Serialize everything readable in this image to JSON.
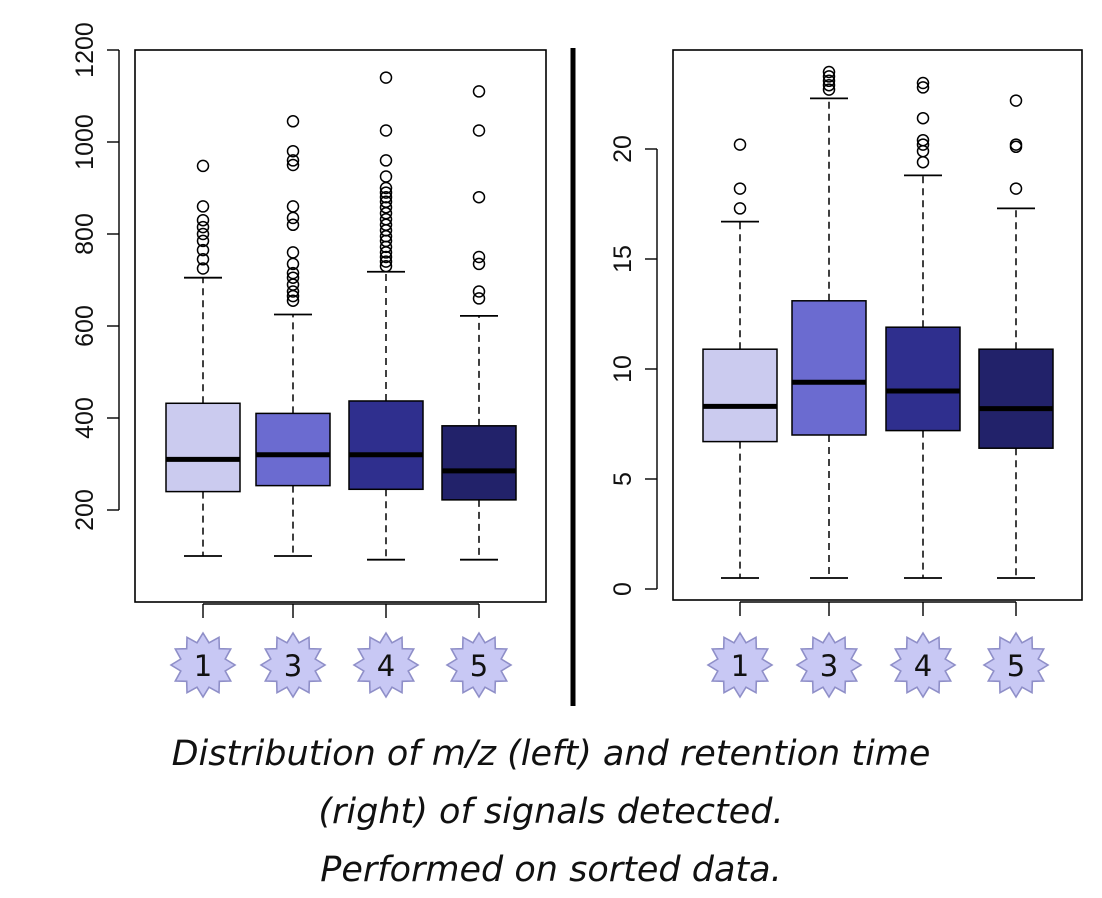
{
  "colors": {
    "group_fills": [
      "#cbcbef",
      "#6b6bd0",
      "#2f2f8e",
      "#22226a"
    ],
    "badge_fill": "#c8c8f4",
    "badge_stroke": "#8f8fc8",
    "divider": "#000000"
  },
  "chart_data": [
    {
      "type": "box",
      "categories": [
        "1",
        "3",
        "4",
        "5"
      ],
      "category_badges": "star",
      "ylim": [
        0,
        1200
      ],
      "yticks": [
        200,
        400,
        600,
        800,
        1000,
        1200
      ],
      "grid": false,
      "boxes": [
        {
          "label": "1",
          "whisker_low": 100,
          "q1": 240,
          "median": 310,
          "q3": 432,
          "whisker_high": 705,
          "outliers": [
            725,
            745,
            765,
            785,
            800,
            815,
            830,
            860,
            948
          ]
        },
        {
          "label": "3",
          "whisker_low": 100,
          "q1": 253,
          "median": 320,
          "q3": 410,
          "whisker_high": 625,
          "outliers": [
            655,
            665,
            675,
            690,
            705,
            715,
            735,
            760,
            820,
            835,
            860,
            950,
            960,
            980,
            1045
          ]
        },
        {
          "label": "4",
          "whisker_low": 92,
          "q1": 245,
          "median": 320,
          "q3": 437,
          "whisker_high": 718,
          "outliers": [
            730,
            740,
            750,
            760,
            772,
            785,
            795,
            808,
            820,
            832,
            845,
            858,
            870,
            880,
            890,
            900,
            925,
            960,
            1025,
            1140
          ]
        },
        {
          "label": "5",
          "whisker_low": 92,
          "q1": 222,
          "median": 285,
          "q3": 383,
          "whisker_high": 622,
          "outliers": [
            660,
            675,
            735,
            750,
            880,
            1025,
            1110
          ]
        }
      ]
    },
    {
      "type": "box",
      "categories": [
        "1",
        "3",
        "4",
        "5"
      ],
      "category_badges": "star",
      "ylim": [
        -0.5,
        24.5
      ],
      "yticks": [
        0,
        5,
        10,
        15,
        20
      ],
      "grid": false,
      "boxes": [
        {
          "label": "1",
          "whisker_low": 0.5,
          "q1": 6.7,
          "median": 8.3,
          "q3": 10.9,
          "whisker_high": 16.7,
          "outliers": [
            17.3,
            18.2,
            20.2
          ]
        },
        {
          "label": "3",
          "whisker_low": 0.5,
          "q1": 7.0,
          "median": 9.4,
          "q3": 13.1,
          "whisker_high": 22.3,
          "outliers": [
            22.7,
            22.9,
            23.1,
            23.3,
            23.5
          ]
        },
        {
          "label": "4",
          "whisker_low": 0.5,
          "q1": 7.2,
          "median": 9.0,
          "q3": 11.9,
          "whisker_high": 18.8,
          "outliers": [
            19.4,
            19.9,
            20.2,
            20.4,
            21.4,
            22.8,
            23.0
          ]
        },
        {
          "label": "5",
          "whisker_low": 0.5,
          "q1": 6.4,
          "median": 8.2,
          "q3": 10.9,
          "whisker_high": 17.3,
          "outliers": [
            18.2,
            20.1,
            20.2,
            22.2
          ]
        }
      ]
    }
  ],
  "caption": {
    "line1": "Distribution of m/z (left) and retention time",
    "line2": "(right) of signals detected.",
    "line3": "Performed on sorted data."
  }
}
